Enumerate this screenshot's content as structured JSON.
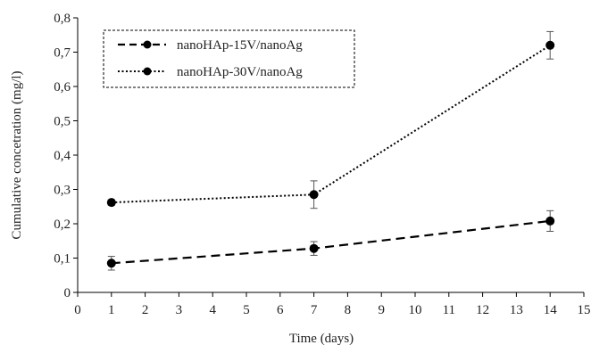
{
  "chart_data": {
    "type": "line",
    "title": "",
    "xlabel": "Time (days)",
    "ylabel": "Cumulative concetration (mg/l)",
    "xlim": [
      0,
      15
    ],
    "ylim": [
      0,
      0.8
    ],
    "xticks": [
      0,
      1,
      2,
      3,
      4,
      5,
      6,
      7,
      8,
      9,
      10,
      11,
      12,
      13,
      14,
      15
    ],
    "xtick_labels": [
      "0",
      "1",
      "2",
      "3",
      "4",
      "5",
      "6",
      "7",
      "8",
      "9",
      "10",
      "11",
      "12",
      "13",
      "14",
      "15"
    ],
    "yticks": [
      0,
      0.1,
      0.2,
      0.3,
      0.4,
      0.5,
      0.6,
      0.7,
      0.8
    ],
    "ytick_labels": [
      "0",
      "0,1",
      "0,2",
      "0,3",
      "0,4",
      "0,5",
      "0,6",
      "0,7",
      "0,8"
    ],
    "grid": false,
    "legend": {
      "position": "top-left",
      "border": "dashed"
    },
    "series": [
      {
        "name": "nanoHAp-15V/nanoAg",
        "line_style": "dashed",
        "color": "#000000",
        "x": [
          1,
          7,
          14
        ],
        "y": [
          0.085,
          0.128,
          0.208
        ],
        "error": [
          0.02,
          0.02,
          0.03
        ]
      },
      {
        "name": "nanoHAp-30V/nanoAg",
        "line_style": "dotted",
        "color": "#000000",
        "x": [
          1,
          7,
          14
        ],
        "y": [
          0.262,
          0.285,
          0.72
        ],
        "error": [
          0.008,
          0.04,
          0.04
        ]
      }
    ]
  }
}
